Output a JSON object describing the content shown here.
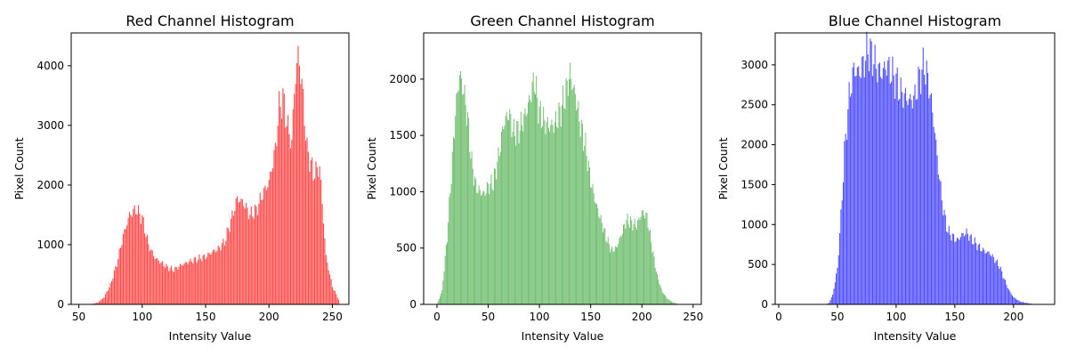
{
  "chart_data": [
    {
      "type": "bar",
      "title": "Red Channel Histogram",
      "xlabel": "Intensity Value",
      "ylabel": "Pixel Count",
      "xlim": [
        44,
        263
      ],
      "ylim": [
        0,
        4550
      ],
      "xticks": [
        50,
        100,
        150,
        200,
        250
      ],
      "yticks": [
        0,
        1000,
        2000,
        3000,
        4000
      ],
      "color": "#ff0000",
      "grid": false,
      "profile": [
        [
          55,
          0
        ],
        [
          60,
          5
        ],
        [
          65,
          30
        ],
        [
          70,
          120
        ],
        [
          75,
          330
        ],
        [
          80,
          680
        ],
        [
          85,
          1150
        ],
        [
          90,
          1500
        ],
        [
          95,
          1600
        ],
        [
          100,
          1450
        ],
        [
          105,
          1000
        ],
        [
          110,
          780
        ],
        [
          115,
          700
        ],
        [
          120,
          620
        ],
        [
          125,
          580
        ],
        [
          130,
          650
        ],
        [
          135,
          700
        ],
        [
          140,
          740
        ],
        [
          145,
          770
        ],
        [
          150,
          800
        ],
        [
          155,
          880
        ],
        [
          160,
          930
        ],
        [
          165,
          1050
        ],
        [
          170,
          1400
        ],
        [
          175,
          1780
        ],
        [
          180,
          1700
        ],
        [
          185,
          1500
        ],
        [
          190,
          1580
        ],
        [
          195,
          1850
        ],
        [
          200,
          2050
        ],
        [
          205,
          2600
        ],
        [
          208,
          3300
        ],
        [
          211,
          3450
        ],
        [
          215,
          2950
        ],
        [
          218,
          2700
        ],
        [
          220,
          3600
        ],
        [
          223,
          4200
        ],
        [
          226,
          3700
        ],
        [
          230,
          2600
        ],
        [
          235,
          2200
        ],
        [
          240,
          2300
        ],
        [
          245,
          800
        ],
        [
          250,
          300
        ],
        [
          255,
          80
        ]
      ]
    },
    {
      "type": "bar",
      "title": "Green Channel Histogram",
      "xlabel": "Intensity Value",
      "ylabel": "Pixel Count",
      "xlim": [
        -13,
        258
      ],
      "ylim": [
        0,
        2410
      ],
      "xticks": [
        0,
        50,
        100,
        150,
        200,
        250
      ],
      "yticks": [
        0,
        500,
        1000,
        1500,
        2000
      ],
      "color": "#2ca02c",
      "grid": false,
      "profile": [
        [
          0,
          0
        ],
        [
          5,
          120
        ],
        [
          10,
          600
        ],
        [
          14,
          1150
        ],
        [
          18,
          1700
        ],
        [
          22,
          2050
        ],
        [
          26,
          1900
        ],
        [
          30,
          1650
        ],
        [
          34,
          1250
        ],
        [
          38,
          1050
        ],
        [
          42,
          1000
        ],
        [
          46,
          980
        ],
        [
          50,
          1050
        ],
        [
          55,
          1080
        ],
        [
          60,
          1300
        ],
        [
          65,
          1600
        ],
        [
          70,
          1700
        ],
        [
          75,
          1520
        ],
        [
          80,
          1550
        ],
        [
          85,
          1650
        ],
        [
          90,
          1800
        ],
        [
          95,
          2000
        ],
        [
          100,
          1700
        ],
        [
          105,
          1620
        ],
        [
          110,
          1580
        ],
        [
          115,
          1600
        ],
        [
          120,
          1700
        ],
        [
          125,
          1850
        ],
        [
          130,
          2050
        ],
        [
          135,
          1850
        ],
        [
          140,
          1600
        ],
        [
          145,
          1400
        ],
        [
          150,
          1100
        ],
        [
          155,
          900
        ],
        [
          160,
          750
        ],
        [
          165,
          600
        ],
        [
          170,
          480
        ],
        [
          175,
          500
        ],
        [
          180,
          620
        ],
        [
          185,
          750
        ],
        [
          190,
          720
        ],
        [
          195,
          700
        ],
        [
          200,
          820
        ],
        [
          205,
          780
        ],
        [
          210,
          500
        ],
        [
          215,
          250
        ],
        [
          220,
          110
        ],
        [
          225,
          50
        ],
        [
          230,
          20
        ],
        [
          235,
          5
        ],
        [
          240,
          0
        ]
      ]
    },
    {
      "type": "bar",
      "title": "Blue Channel Histogram",
      "xlabel": "Intensity Value",
      "ylabel": "Pixel Count",
      "xlim": [
        -3,
        235
      ],
      "ylim": [
        0,
        3400
      ],
      "xticks": [
        0,
        50,
        100,
        150,
        200
      ],
      "yticks": [
        0,
        500,
        1000,
        1500,
        2000,
        2500,
        3000
      ],
      "color": "#0000ff",
      "grid": false,
      "profile": [
        [
          40,
          0
        ],
        [
          43,
          20
        ],
        [
          46,
          120
        ],
        [
          50,
          450
        ],
        [
          53,
          1100
        ],
        [
          56,
          1900
        ],
        [
          60,
          2600
        ],
        [
          64,
          2950
        ],
        [
          68,
          2900
        ],
        [
          72,
          3000
        ],
        [
          76,
          3200
        ],
        [
          80,
          3100
        ],
        [
          84,
          2950
        ],
        [
          88,
          2900
        ],
        [
          92,
          3000
        ],
        [
          96,
          2900
        ],
        [
          100,
          2800
        ],
        [
          104,
          2650
        ],
        [
          108,
          2600
        ],
        [
          112,
          2550
        ],
        [
          116,
          2600
        ],
        [
          120,
          2850
        ],
        [
          124,
          3000
        ],
        [
          128,
          2750
        ],
        [
          132,
          2300
        ],
        [
          136,
          1700
        ],
        [
          140,
          1200
        ],
        [
          144,
          920
        ],
        [
          148,
          850
        ],
        [
          152,
          800
        ],
        [
          156,
          870
        ],
        [
          160,
          900
        ],
        [
          164,
          820
        ],
        [
          168,
          760
        ],
        [
          172,
          700
        ],
        [
          176,
          660
        ],
        [
          180,
          640
        ],
        [
          184,
          560
        ],
        [
          188,
          480
        ],
        [
          192,
          320
        ],
        [
          196,
          180
        ],
        [
          200,
          90
        ],
        [
          205,
          40
        ],
        [
          210,
          20
        ],
        [
          215,
          8
        ],
        [
          220,
          3
        ]
      ]
    }
  ]
}
